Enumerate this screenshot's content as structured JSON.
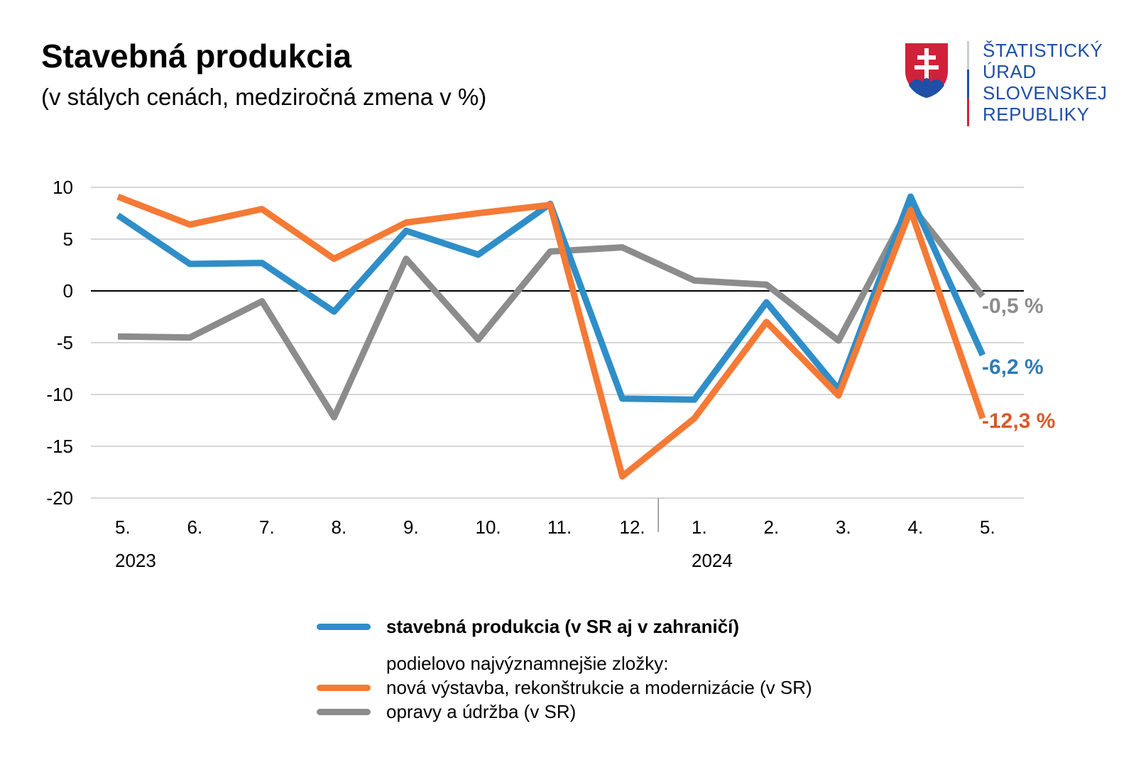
{
  "header": {
    "title": "Stavebná produkcia",
    "subtitle": "(v stálych cenách, medziročná zmena v %)"
  },
  "logo": {
    "lines": [
      "ŠTATISTICKÝ",
      "ÚRAD",
      "SLOVENSKEJ",
      "REPUBLIKY"
    ],
    "color": "#1f4fa6",
    "emblem_colors": {
      "shield": "#d0223a",
      "cross": "#ffffff",
      "hills": "#1f4fa6"
    }
  },
  "chart_data": {
    "type": "line",
    "x": [
      "5.",
      "6.",
      "7.",
      "8.",
      "9.",
      "10.",
      "11.",
      "12.",
      "1.",
      "2.",
      "3.",
      "4.",
      "5."
    ],
    "year_labels": [
      {
        "label": "2023",
        "index": 0
      },
      {
        "label": "2024",
        "index": 8
      }
    ],
    "ylim": [
      -20,
      10
    ],
    "yticks": [
      10,
      5,
      0,
      -5,
      -10,
      -15,
      -20
    ],
    "grid": true,
    "zero_line": true,
    "series": [
      {
        "name": "opravy a údržba (v SR)",
        "color": "#8c8c8c",
        "values": [
          -4.4,
          -4.5,
          -1.0,
          -12.2,
          3.1,
          -4.7,
          3.8,
          4.2,
          1.0,
          0.6,
          -4.8,
          8.3,
          -0.5
        ],
        "end_label": "-0,5 %",
        "end_label_color": "#8c8c8c"
      },
      {
        "name": "stavebná produkcia (v SR aj v zahraničí)",
        "color": "#2f8ec8",
        "values": [
          7.3,
          2.6,
          2.7,
          -2.0,
          5.8,
          3.5,
          8.4,
          -10.4,
          -10.5,
          -1.1,
          -9.5,
          9.1,
          -6.2
        ],
        "end_label": "-6,2 %",
        "end_label_color": "#2f7cb5"
      },
      {
        "name": "nová výstavba, rekonštrukcie a modernizácie (v SR)",
        "color": "#f47a35",
        "values": [
          9.1,
          6.4,
          7.9,
          3.1,
          6.6,
          7.5,
          8.3,
          -17.9,
          -12.3,
          -3.0,
          -10.1,
          7.8,
          -12.3
        ],
        "end_label": "-12,3 %",
        "end_label_color": "#d85a2a"
      }
    ]
  },
  "legend": {
    "main": {
      "label": "stavebná produkcia (v SR aj v zahraničí)",
      "color": "#2f8ec8"
    },
    "note": "podielovo najvýznamnejšie zložky:",
    "components": [
      {
        "label": "nová výstavba, rekonštrukcie a modernizácie (v SR)",
        "color": "#f47a35"
      },
      {
        "label": "opravy a údržba (v SR)",
        "color": "#8c8c8c"
      }
    ]
  }
}
